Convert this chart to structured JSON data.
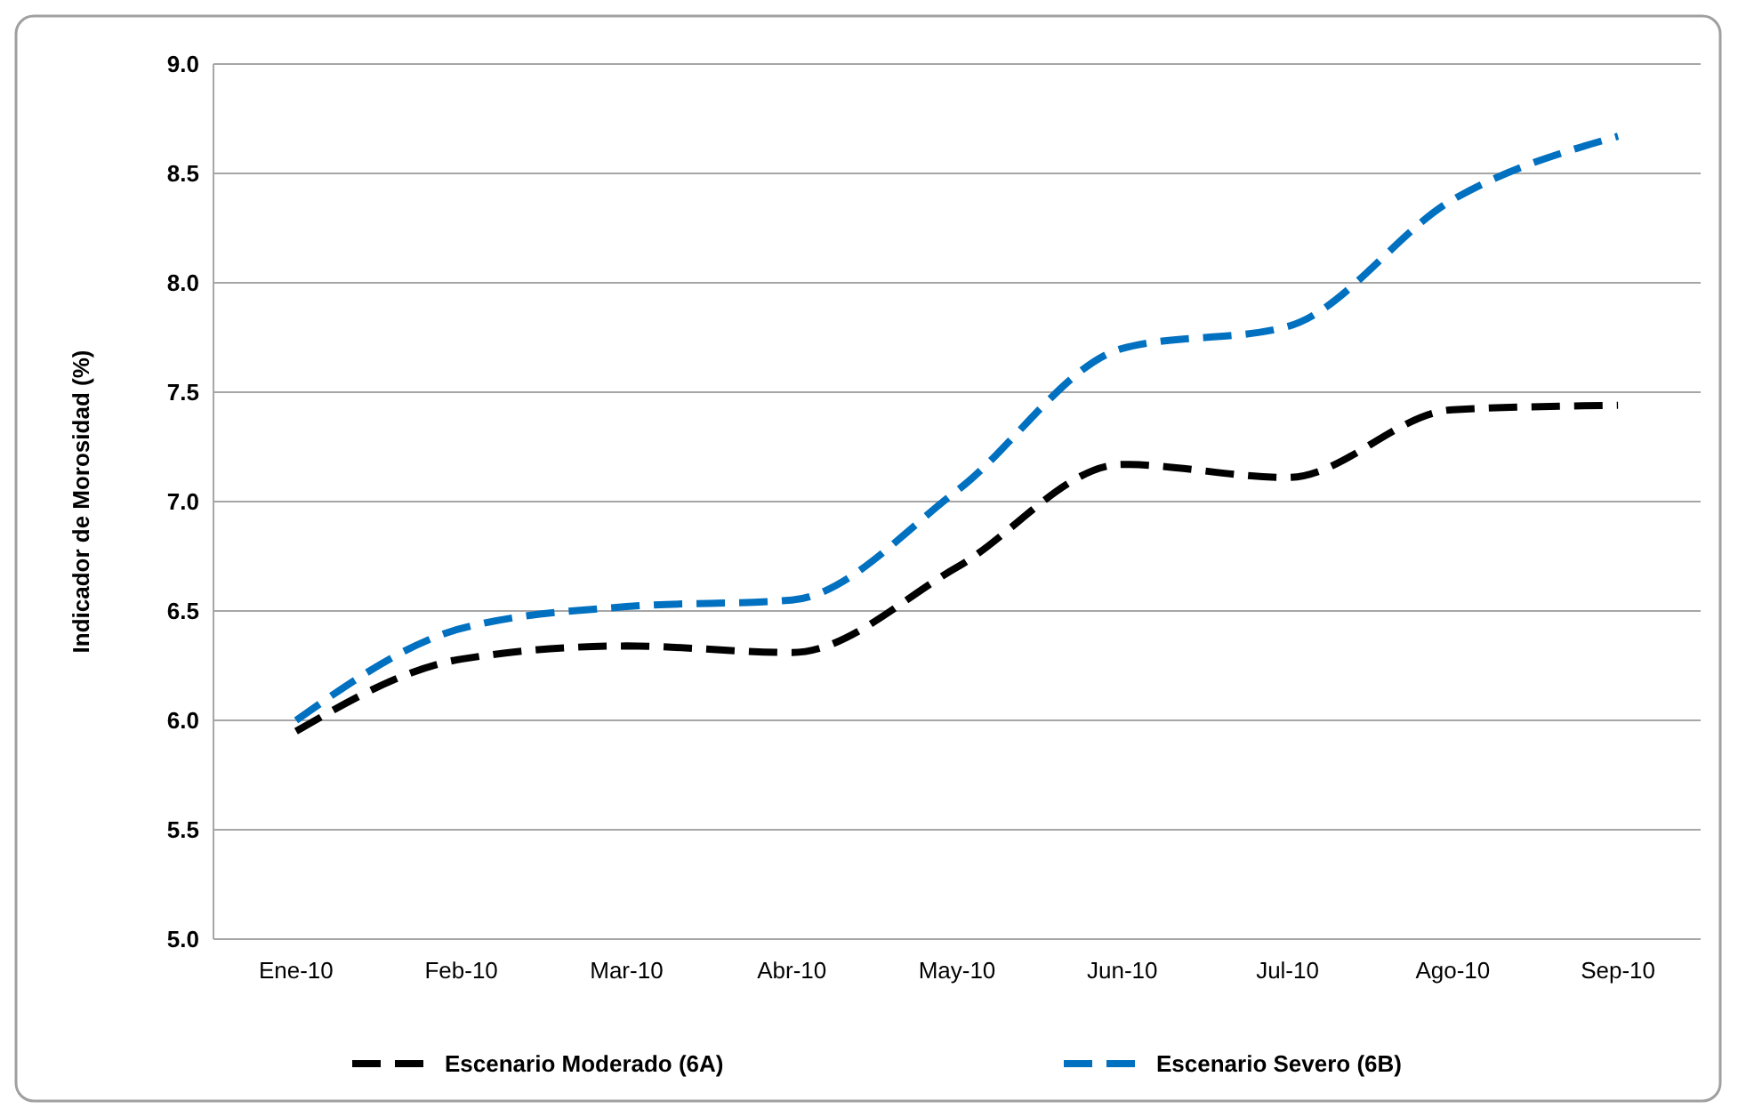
{
  "chart_data": {
    "type": "line",
    "ylabel": "Indicador de Morosidad (%)",
    "categories": [
      "Ene-10",
      "Feb-10",
      "Mar-10",
      "Abr-10",
      "May-10",
      "Jun-10",
      "Jul-10",
      "Ago-10",
      "Sep-10"
    ],
    "series": [
      {
        "name": "Escenario Moderado (6A)",
        "color": "#000000",
        "values": [
          5.95,
          6.28,
          6.34,
          6.31,
          6.7,
          7.17,
          7.11,
          7.42,
          7.44
        ]
      },
      {
        "name": "Escenario Severo (6B)",
        "color": "#0070c0",
        "values": [
          6.0,
          6.42,
          6.52,
          6.55,
          7.05,
          7.7,
          7.8,
          8.38,
          8.67
        ]
      }
    ],
    "ylim": [
      5.0,
      9.0
    ],
    "yticks": [
      {
        "value": 5,
        "label": "5.0"
      },
      {
        "value": 5.5,
        "label": "5.5"
      },
      {
        "value": 6,
        "label": "6.0"
      },
      {
        "value": 6.5,
        "label": "6.5"
      },
      {
        "value": 7,
        "label": "7.0"
      },
      {
        "value": 7.5,
        "label": "7.5"
      },
      {
        "value": 8,
        "label": "8.0"
      },
      {
        "value": 8.5,
        "label": "8.5"
      },
      {
        "value": 9,
        "label": "9.0"
      }
    ],
    "grid": "y",
    "legend": "bottom",
    "line_style": "dashed",
    "marker": "none"
  }
}
